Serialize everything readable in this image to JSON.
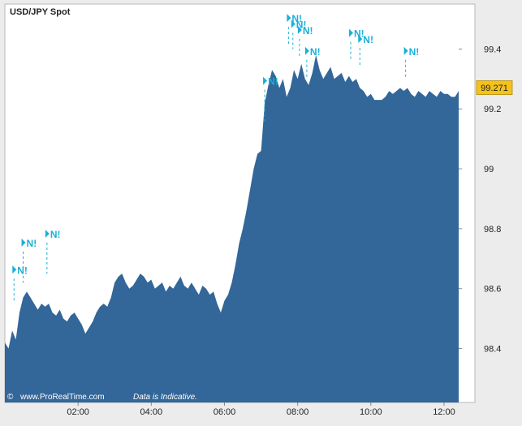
{
  "chart_data": {
    "type": "area",
    "title": "USD/JPY Spot",
    "xlabel": "",
    "ylabel": "",
    "x_unit": "hours",
    "xlim": [
      0,
      12.4
    ],
    "ylim": [
      98.22,
      99.55
    ],
    "x_ticks": [
      {
        "value": 2,
        "label": "02:00"
      },
      {
        "value": 4,
        "label": "04:00"
      },
      {
        "value": 6,
        "label": "06:00"
      },
      {
        "value": 8,
        "label": "08:00"
      },
      {
        "value": 10,
        "label": "10:00"
      },
      {
        "value": 12,
        "label": "12:00"
      }
    ],
    "y_ticks": [
      {
        "value": 98.4,
        "label": "98.4"
      },
      {
        "value": 98.6,
        "label": "98.6"
      },
      {
        "value": 98.8,
        "label": "98.8"
      },
      {
        "value": 99,
        "label": "99"
      },
      {
        "value": 99.2,
        "label": "99.2"
      },
      {
        "value": 99.4,
        "label": "99.4"
      }
    ],
    "grid": false,
    "series": [
      {
        "x": [
          0,
          0.1,
          0.2,
          0.3,
          0.4,
          0.5,
          0.6,
          0.7,
          0.8,
          0.9,
          1.0,
          1.1,
          1.2,
          1.3,
          1.4,
          1.5,
          1.6,
          1.7,
          1.8,
          1.9,
          2.0,
          2.1,
          2.2,
          2.3,
          2.4,
          2.5,
          2.6,
          2.7,
          2.8,
          2.9,
          3.0,
          3.1,
          3.2,
          3.3,
          3.4,
          3.5,
          3.6,
          3.7,
          3.8,
          3.9,
          4.0,
          4.1,
          4.2,
          4.3,
          4.4,
          4.5,
          4.6,
          4.7,
          4.8,
          4.9,
          5.0,
          5.1,
          5.2,
          5.3,
          5.4,
          5.5,
          5.6,
          5.7,
          5.8,
          5.9,
          6.0,
          6.1,
          6.2,
          6.3,
          6.4,
          6.5,
          6.6,
          6.7,
          6.8,
          6.9,
          7.0,
          7.1,
          7.2,
          7.3,
          7.4,
          7.5,
          7.6,
          7.7,
          7.8,
          7.9,
          8.0,
          8.1,
          8.2,
          8.3,
          8.4,
          8.5,
          8.6,
          8.7,
          8.8,
          8.9,
          9.0,
          9.1,
          9.2,
          9.3,
          9.4,
          9.5,
          9.6,
          9.7,
          9.8,
          9.9,
          10.0,
          10.1,
          10.2,
          10.3,
          10.4,
          10.5,
          10.6,
          10.7,
          10.8,
          10.9,
          11.0,
          11.1,
          11.2,
          11.3,
          11.4,
          11.5,
          11.6,
          11.7,
          11.8,
          11.9,
          12.0,
          12.1,
          12.2,
          12.3,
          12.4
        ],
        "y": [
          98.42,
          98.4,
          98.46,
          98.43,
          98.52,
          98.57,
          98.59,
          98.57,
          98.55,
          98.53,
          98.55,
          98.54,
          98.55,
          98.52,
          98.51,
          98.53,
          98.5,
          98.49,
          98.51,
          98.52,
          98.5,
          98.48,
          98.45,
          98.47,
          98.49,
          98.52,
          98.54,
          98.55,
          98.54,
          98.57,
          98.62,
          98.64,
          98.65,
          98.62,
          98.6,
          98.61,
          98.63,
          98.65,
          98.64,
          98.62,
          98.63,
          98.6,
          98.61,
          98.62,
          98.59,
          98.61,
          98.6,
          98.62,
          98.64,
          98.61,
          98.6,
          98.62,
          98.6,
          98.58,
          98.61,
          98.6,
          98.58,
          98.59,
          98.55,
          98.52,
          98.56,
          98.58,
          98.62,
          98.68,
          98.75,
          98.8,
          98.86,
          98.93,
          99.0,
          99.05,
          99.06,
          99.22,
          99.28,
          99.33,
          99.31,
          99.27,
          99.3,
          99.24,
          99.27,
          99.33,
          99.3,
          99.35,
          99.3,
          99.28,
          99.32,
          99.38,
          99.33,
          99.3,
          99.32,
          99.34,
          99.3,
          99.31,
          99.32,
          99.29,
          99.31,
          99.29,
          99.3,
          99.27,
          99.26,
          99.24,
          99.25,
          99.23,
          99.23,
          99.23,
          99.24,
          99.26,
          99.25,
          99.26,
          99.27,
          99.26,
          99.27,
          99.25,
          99.24,
          99.26,
          99.25,
          99.24,
          99.26,
          99.25,
          99.24,
          99.26,
          99.25,
          99.25,
          99.24,
          99.24,
          99.26
        ],
        "color": "#336699"
      }
    ],
    "annotations": [
      {
        "x": 0.25,
        "y_top": 98.65,
        "y_bottom": 98.56,
        "label": "N!"
      },
      {
        "x": 0.5,
        "y_top": 98.74,
        "y_bottom": 98.62,
        "label": "N!"
      },
      {
        "x": 1.15,
        "y_top": 98.77,
        "y_bottom": 98.65,
        "label": "N!"
      },
      {
        "x": 7.1,
        "y_top": 99.28,
        "y_bottom": 99.15,
        "label": "N!"
      },
      {
        "x": 7.75,
        "y_top": 99.49,
        "y_bottom": 99.41,
        "label": "N!"
      },
      {
        "x": 7.87,
        "y_top": 99.47,
        "y_bottom": 99.4,
        "label": "N!"
      },
      {
        "x": 8.05,
        "y_top": 99.45,
        "y_bottom": 99.37,
        "label": "N!"
      },
      {
        "x": 8.25,
        "y_top": 99.38,
        "y_bottom": 99.3,
        "label": "N!"
      },
      {
        "x": 9.45,
        "y_top": 99.44,
        "y_bottom": 99.36,
        "label": "N!"
      },
      {
        "x": 9.7,
        "y_top": 99.42,
        "y_bottom": 99.34,
        "label": "N!"
      },
      {
        "x": 10.95,
        "y_top": 99.38,
        "y_bottom": 99.3,
        "label": "N!"
      }
    ],
    "last_value": "99.271",
    "footer": {
      "copyright": "©",
      "site": "www.ProRealTime.com",
      "note": "Data is Indicative."
    }
  },
  "colors": {
    "page_bg": "#ececec",
    "plot_bg": "#ffffff",
    "area": "#336699",
    "annotation": "#1ab0d8",
    "last_value_bg": "#f4c21b",
    "axis_text": "#222222"
  }
}
